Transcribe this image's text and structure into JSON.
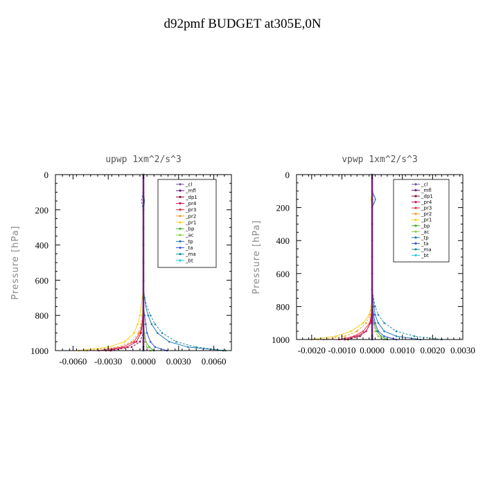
{
  "figure": {
    "title": "d92pmf  BUDGET at305E,0N"
  },
  "chart_data": [
    {
      "type": "line",
      "title": "upwp   1xm^2/s^3",
      "ylabel": "Pressure [hPa]",
      "xlim": [
        -0.0075,
        0.0075
      ],
      "ylim": [
        1000,
        0
      ],
      "y_inverted": true,
      "xticks": [
        -0.006,
        -0.003,
        0.0,
        0.003,
        0.006
      ],
      "xtick_labels": [
        "-0.0060",
        "-0.0030",
        "0.0000",
        "0.0030",
        "0.0060"
      ],
      "yticks": [
        0,
        200,
        400,
        600,
        800,
        1000
      ],
      "ytick_labels": [
        "0",
        "200",
        "400",
        "600",
        "800",
        "1000"
      ],
      "grid": false,
      "legend_position": "top-right",
      "y": [
        0,
        50,
        100,
        150,
        200,
        250,
        300,
        350,
        400,
        450,
        500,
        550,
        600,
        650,
        700,
        750,
        800,
        850,
        900,
        950,
        980,
        1000
      ],
      "series": [
        {
          "name": "_cl",
          "color": "#7a4fa0",
          "values": [
            0,
            0,
            0,
            0,
            0,
            0,
            0,
            0,
            0,
            0,
            0,
            0,
            0,
            0,
            0,
            0,
            0,
            0,
            0,
            0,
            0,
            0
          ]
        },
        {
          "name": "_mfl",
          "color": "#6a1a7a",
          "values": [
            0,
            0,
            0,
            0,
            0,
            0,
            0,
            0,
            0,
            0,
            0,
            0,
            0,
            0,
            0,
            0,
            0,
            0,
            0,
            0,
            0,
            0
          ]
        },
        {
          "name": "_dp1",
          "color": "#8b0a3a",
          "values": [
            0,
            0,
            0,
            0,
            0,
            0,
            0,
            0,
            0,
            0,
            0,
            0,
            0,
            0,
            0,
            0,
            0,
            0,
            0,
            -0.0003,
            -0.001,
            -0.0028
          ]
        },
        {
          "name": "_pr4",
          "color": "#cc1155",
          "values": [
            0,
            0,
            0,
            0,
            0,
            0,
            0,
            0,
            0,
            0,
            0,
            0,
            0,
            0,
            0,
            -2e-05,
            -5e-05,
            -0.0001,
            -0.0002,
            -0.0006,
            -0.0014,
            -0.0032
          ]
        },
        {
          "name": "_pr3",
          "color": "#e0304a",
          "values": [
            0,
            0,
            0,
            0,
            0,
            0,
            0,
            0,
            0,
            0,
            0,
            0,
            0,
            0,
            0,
            -3e-05,
            -6e-05,
            -0.00012,
            -0.0003,
            -0.0008,
            -0.0018,
            -0.0038
          ]
        },
        {
          "name": "_pr2",
          "color": "#f4a030",
          "values": [
            0,
            0,
            0,
            0,
            0,
            0,
            0,
            0,
            0,
            0,
            0,
            0,
            0,
            0,
            -3e-05,
            -6e-05,
            -0.0001,
            -0.0002,
            -0.0004,
            -0.001,
            -0.0022,
            -0.0048
          ]
        },
        {
          "name": "_pr1",
          "color": "#f0d020",
          "values": [
            0,
            0,
            0,
            0,
            0,
            0,
            0,
            0,
            0,
            0,
            0,
            0,
            0,
            0,
            -0.0001,
            -0.0002,
            -0.0003,
            -0.0005,
            -0.0008,
            -0.0016,
            -0.003,
            -0.0055
          ]
        },
        {
          "name": "_bp",
          "color": "#44aa33",
          "values": [
            0,
            0,
            0,
            0,
            0,
            0,
            0,
            0,
            0,
            0,
            0,
            0,
            0,
            0,
            0,
            0,
            0,
            3e-05,
            8e-05,
            0.0002,
            0.0005,
            0.0009
          ]
        },
        {
          "name": "_ac",
          "color": "#88cc44",
          "values": [
            0,
            0,
            0,
            0,
            0,
            0,
            0,
            0,
            0,
            0,
            0,
            0,
            0,
            0,
            0,
            0,
            0,
            2e-05,
            6e-05,
            0.00015,
            0.0003,
            0.0006
          ]
        },
        {
          "name": "_tp",
          "color": "#2277bb",
          "values": [
            0,
            0,
            0,
            0.0001,
            0,
            0,
            0,
            0,
            0,
            0,
            0,
            0,
            0,
            0,
            0.0001,
            0.0002,
            0.0004,
            0.0007,
            0.0012,
            0.0022,
            0.0038,
            0.0068
          ]
        },
        {
          "name": "_ta",
          "color": "#3355dd",
          "values": [
            0,
            0,
            0,
            0,
            0,
            0,
            0,
            0,
            0,
            0,
            0,
            0,
            0,
            0,
            0,
            0,
            0.0001,
            0.0002,
            0.0003,
            0.0006,
            0.001,
            0.002
          ]
        },
        {
          "name": "_ma",
          "color": "#1a8a9a",
          "values": [
            0,
            0,
            0,
            -0.0002,
            0,
            0,
            0,
            0,
            0,
            0,
            0,
            0,
            0,
            0,
            0.0001,
            0.0003,
            0.0006,
            0.001,
            0.0016,
            0.0028,
            0.0045,
            0.007
          ]
        },
        {
          "name": "_bt",
          "color": "#22ccdd",
          "values": [
            0,
            0,
            0,
            0,
            0,
            0,
            0,
            0,
            0,
            0,
            0,
            0,
            0,
            0,
            0,
            0,
            0,
            0,
            0,
            0,
            0,
            0
          ]
        }
      ]
    },
    {
      "type": "line",
      "title": "vpwp   1xm^2/s^3",
      "ylabel": "Pressure [hPa]",
      "xlim": [
        -0.0025,
        0.003
      ],
      "ylim": [
        1000,
        0
      ],
      "y_inverted": true,
      "xticks": [
        -0.002,
        -0.001,
        0.0,
        0.001,
        0.002,
        0.003
      ],
      "xtick_labels": [
        "-0.0020",
        "-0.0010",
        "0.0000",
        "0.0010",
        "0.0020",
        "0.0030"
      ],
      "yticks": [
        0,
        200,
        400,
        600,
        800,
        1000
      ],
      "ytick_labels": [
        "0",
        "200",
        "400",
        "600",
        "800",
        "1000"
      ],
      "grid": false,
      "legend_position": "top-right",
      "y": [
        0,
        50,
        100,
        150,
        200,
        250,
        300,
        350,
        400,
        450,
        500,
        550,
        600,
        650,
        700,
        750,
        800,
        850,
        900,
        950,
        980,
        1000
      ],
      "series": [
        {
          "name": "_cl",
          "color": "#7a4fa0",
          "values": [
            0,
            0,
            0,
            0,
            0,
            0,
            0,
            0,
            0,
            0,
            0,
            0,
            0,
            0,
            0,
            0,
            0,
            0,
            0,
            0,
            0,
            0
          ]
        },
        {
          "name": "_mfl",
          "color": "#6a1a7a",
          "values": [
            0,
            0,
            0,
            0,
            0,
            0,
            0,
            0,
            0,
            0,
            0,
            0,
            0,
            0,
            0,
            0,
            0,
            0,
            0,
            0,
            0,
            0
          ]
        },
        {
          "name": "_dp1",
          "color": "#8b0a3a",
          "values": [
            0,
            0,
            0,
            0,
            0,
            0,
            0,
            0,
            0,
            0,
            0,
            0,
            0,
            0,
            0,
            0,
            0,
            0,
            -5e-05,
            -0.0002,
            -0.0004,
            -0.0008
          ]
        },
        {
          "name": "_pr4",
          "color": "#cc1155",
          "values": [
            0,
            0,
            0,
            0,
            0,
            0,
            0,
            0,
            0,
            0,
            0,
            0,
            0,
            0,
            0,
            0,
            0,
            -2e-05,
            -6e-05,
            -0.0002,
            -0.0005,
            -0.0009
          ]
        },
        {
          "name": "_pr3",
          "color": "#e0304a",
          "values": [
            0,
            0,
            0,
            0,
            0,
            0,
            0,
            0,
            0,
            0,
            0,
            0,
            0,
            0,
            0,
            0,
            0,
            -3e-05,
            -8e-05,
            -0.0003,
            -0.0006,
            -0.0011
          ]
        },
        {
          "name": "_pr2",
          "color": "#f4a030",
          "values": [
            0,
            0,
            0,
            3e-05,
            0,
            0,
            0,
            0,
            0,
            0,
            0,
            0,
            0,
            0,
            0,
            0,
            -2e-05,
            -6e-05,
            -0.0002,
            -0.0005,
            -0.0009,
            -0.0016
          ]
        },
        {
          "name": "_pr1",
          "color": "#f0d020",
          "values": [
            0,
            0,
            0,
            -4e-05,
            0,
            0,
            0,
            0,
            0,
            0,
            0,
            0,
            0,
            0,
            0,
            0,
            -3e-05,
            -0.0001,
            -0.0003,
            -0.0007,
            -0.0012,
            -0.002
          ]
        },
        {
          "name": "_bp",
          "color": "#44aa33",
          "values": [
            0,
            0,
            0,
            0,
            0,
            0,
            0,
            0,
            0,
            0,
            0,
            0,
            0,
            0,
            0,
            0,
            0,
            2e-05,
            6e-05,
            0.00015,
            0.0003,
            0.0005
          ]
        },
        {
          "name": "_ac",
          "color": "#88cc44",
          "values": [
            0,
            0,
            0,
            0,
            0,
            0,
            0,
            0,
            0,
            0,
            0,
            0,
            0,
            0,
            0,
            0,
            0,
            1e-05,
            4e-05,
            0.0001,
            0.0002,
            0.0004
          ]
        },
        {
          "name": "_tp",
          "color": "#2277bb",
          "values": [
            0,
            0,
            0,
            0.00012,
            0,
            0,
            0,
            0,
            0,
            0,
            0,
            0,
            0,
            0,
            0,
            3e-05,
            6e-05,
            0.0001,
            0.0002,
            0.0004,
            0.0008,
            0.0016
          ]
        },
        {
          "name": "_ta",
          "color": "#3355dd",
          "values": [
            0,
            0,
            0,
            0,
            0,
            0,
            0,
            0,
            0,
            0,
            0,
            0,
            0,
            0,
            0,
            0,
            2e-05,
            5e-05,
            0.0001,
            0.0002,
            0.0004,
            0.0008
          ]
        },
        {
          "name": "_ma",
          "color": "#1a8a9a",
          "values": [
            0,
            0,
            0,
            0.0001,
            0,
            0,
            0,
            0,
            0,
            0,
            0,
            0,
            0,
            0,
            0,
            5e-05,
            0.0001,
            0.0002,
            0.0004,
            0.0008,
            0.0014,
            0.0023
          ]
        },
        {
          "name": "_bt",
          "color": "#22ccdd",
          "values": [
            0,
            0,
            0,
            0,
            0,
            0,
            0,
            0,
            0,
            0,
            0,
            0,
            0,
            0,
            0,
            0,
            0,
            0,
            0,
            0,
            0,
            0
          ]
        }
      ]
    }
  ]
}
